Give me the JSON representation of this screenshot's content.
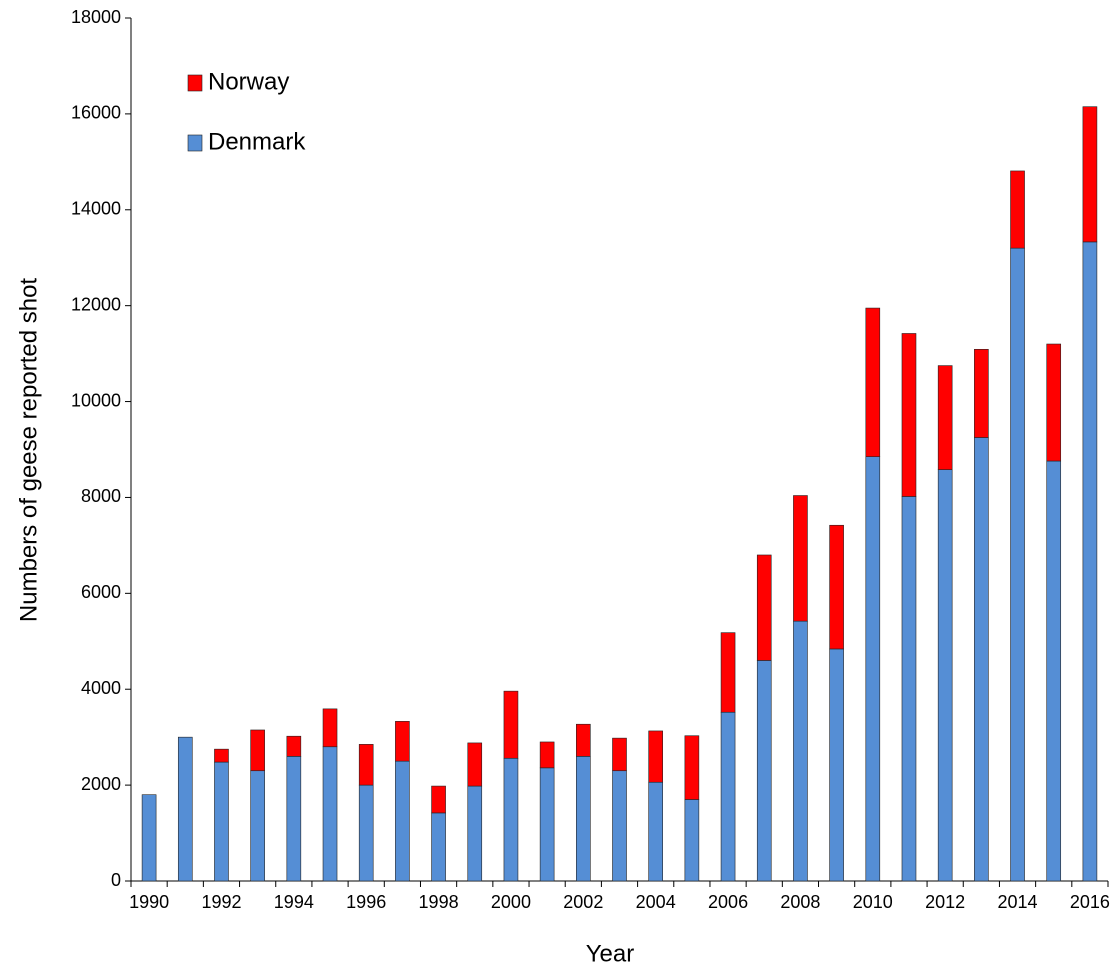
{
  "chart_data": {
    "type": "stacked-bar",
    "x_label": "Year",
    "y_label": "Numbers of geese reported shot",
    "categories": [
      "1990",
      null,
      "1992",
      null,
      "1994",
      null,
      "1996",
      null,
      "1998",
      null,
      "2000",
      null,
      "2002",
      null,
      "2004",
      null,
      "2006",
      null,
      "2008",
      null,
      "2010",
      null,
      "2012",
      null,
      "2014",
      null,
      "2016"
    ],
    "series": [
      {
        "name": "Denmark",
        "color": "#558ed5",
        "values": [
          1800,
          3000,
          2480,
          2300,
          2600,
          2800,
          2000,
          2500,
          1420,
          1980,
          2560,
          2360,
          2600,
          2300,
          2060,
          1700,
          3520,
          4600,
          5420,
          4840,
          8850,
          8020,
          8580,
          9250,
          13200,
          8760,
          13330
        ]
      },
      {
        "name": "Norway",
        "color": "#ff0000",
        "values": [
          0,
          0,
          270,
          850,
          420,
          790,
          850,
          830,
          560,
          900,
          1400,
          540,
          670,
          680,
          1070,
          1330,
          1660,
          2200,
          2620,
          2580,
          3100,
          3400,
          2170,
          1840,
          1610,
          2440,
          2820
        ]
      }
    ],
    "ylim": [
      0,
      18000
    ],
    "yticks": [
      0,
      2000,
      4000,
      6000,
      8000,
      10000,
      12000,
      14000,
      16000,
      18000
    ],
    "legend": "upper-left"
  }
}
